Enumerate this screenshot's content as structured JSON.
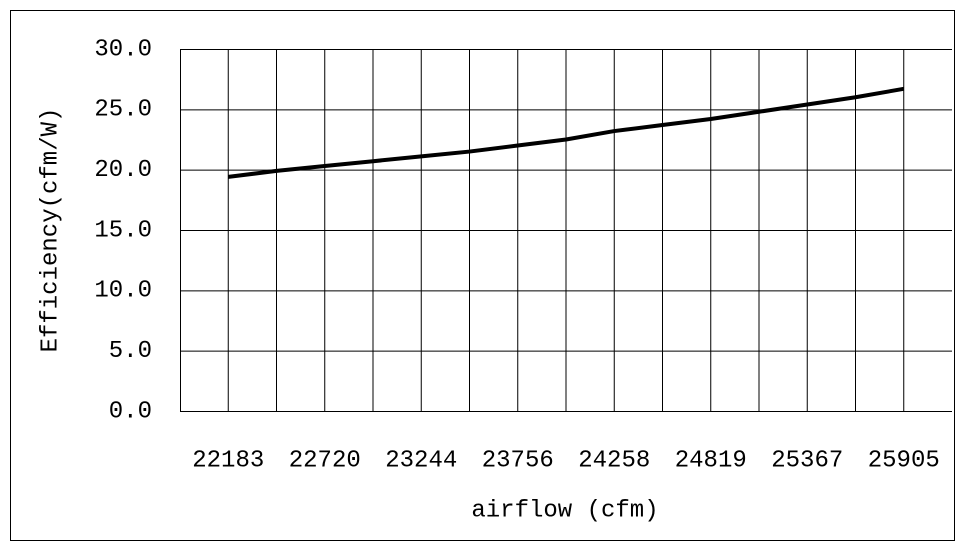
{
  "chart_data": {
    "type": "line",
    "x_label": "airflow (cfm)",
    "y_label": "Efficiency(cfm/W)",
    "categories": [
      "22183",
      null,
      "22720",
      null,
      "23244",
      null,
      "23756",
      null,
      "24258",
      null,
      "24819",
      null,
      "25367",
      null,
      "25905"
    ],
    "series": [
      {
        "name": "Efficiency",
        "color": "#000000",
        "values": [
          19.4,
          19.9,
          20.3,
          20.7,
          21.1,
          21.5,
          22.0,
          22.5,
          23.2,
          23.7,
          24.2,
          24.8,
          25.4,
          26.0,
          26.7
        ]
      }
    ],
    "ylim": [
      0,
      30
    ],
    "yticks": [
      {
        "value": 0,
        "label": "0.0"
      },
      {
        "value": 5,
        "label": "5.0"
      },
      {
        "value": 10,
        "label": "10.0"
      },
      {
        "value": 15,
        "label": "15.0"
      },
      {
        "value": 20,
        "label": "20.0"
      },
      {
        "value": 25,
        "label": "25.0"
      },
      {
        "value": 30,
        "label": "30.0"
      }
    ],
    "grid": true
  }
}
